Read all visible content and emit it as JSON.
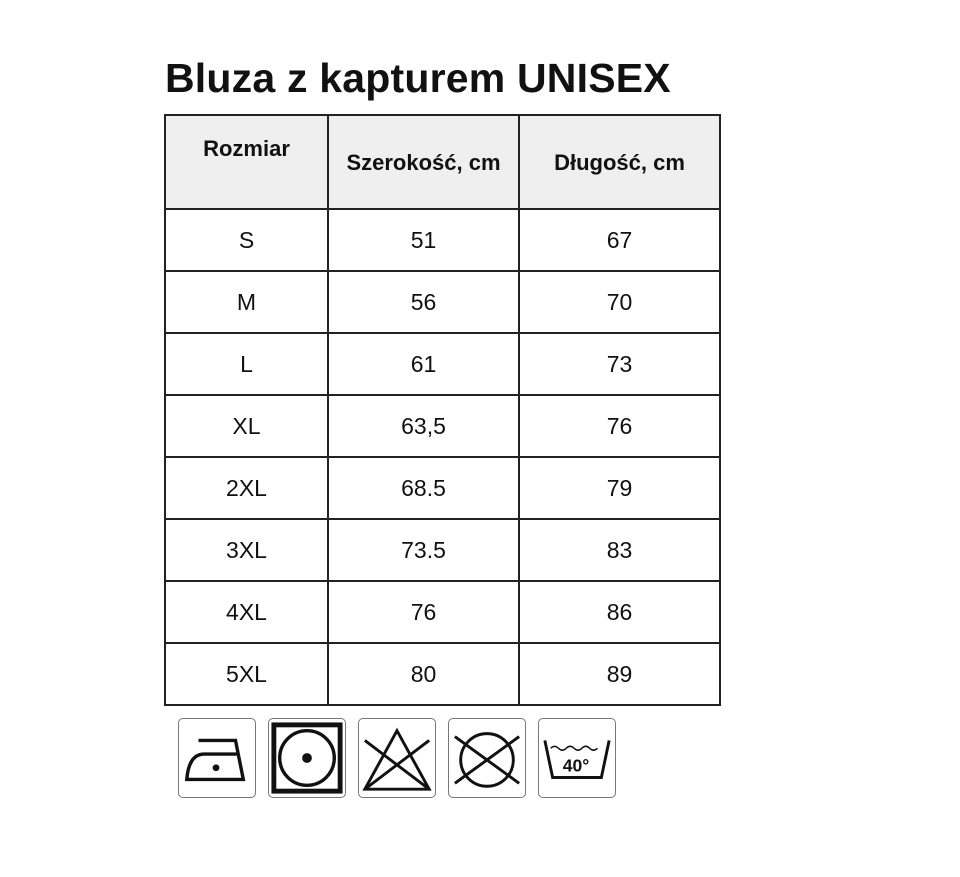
{
  "title": "Bluza z kapturem UNISEX",
  "table": {
    "headers": [
      "Rozmiar",
      "Szerokość, cm",
      "Długość, cm"
    ],
    "rows": [
      [
        "S",
        "51",
        "67"
      ],
      [
        "M",
        "56",
        "70"
      ],
      [
        "L",
        "61",
        "73"
      ],
      [
        "XL",
        "63,5",
        "76"
      ],
      [
        "2XL",
        "68.5",
        "79"
      ],
      [
        "3XL",
        "73.5",
        "83"
      ],
      [
        "4XL",
        "76",
        "86"
      ],
      [
        "5XL",
        "80",
        "89"
      ]
    ]
  },
  "care_icons": [
    {
      "name": "iron-one-dot-icon"
    },
    {
      "name": "tumble-dry-low-icon"
    },
    {
      "name": "do-not-bleach-icon"
    },
    {
      "name": "do-not-dry-clean-icon"
    },
    {
      "name": "wash-40-icon",
      "label": "40°"
    }
  ]
}
